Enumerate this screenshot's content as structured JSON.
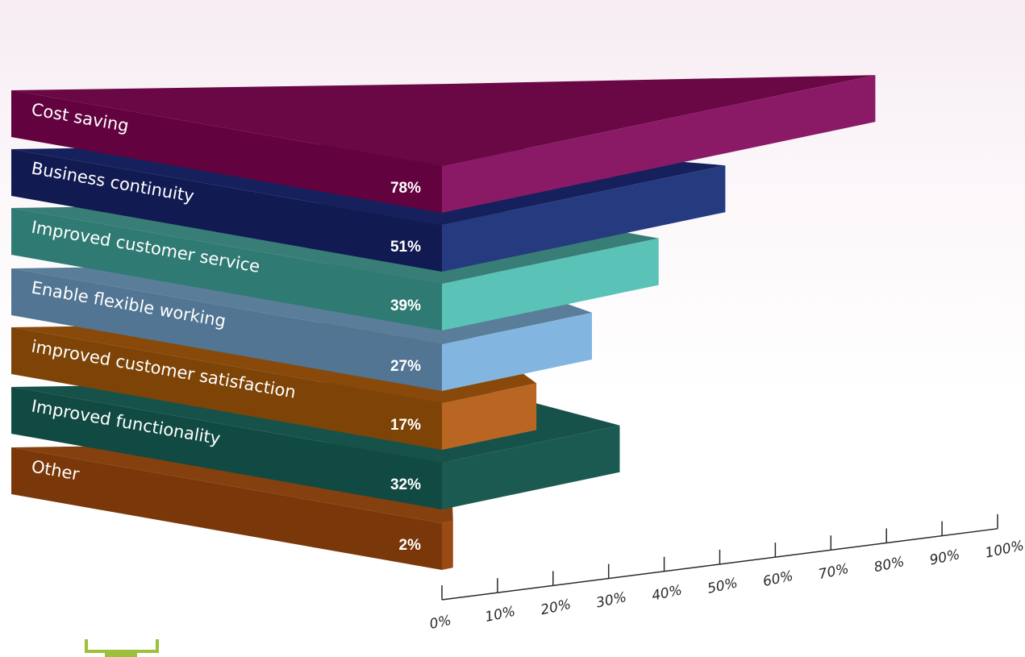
{
  "chart_data": {
    "type": "bar",
    "orientation": "horizontal",
    "categories": [
      "Cost saving",
      "Business continuity",
      "Improved customer service",
      "Enable flexible working",
      "improved customer satisfaction",
      "Improved functionality",
      "Other"
    ],
    "values": [
      78,
      51,
      39,
      27,
      17,
      32,
      2
    ],
    "value_labels": [
      "78%",
      "51%",
      "39%",
      "27%",
      "17%",
      "32%",
      "2%"
    ],
    "xlim": [
      0,
      100
    ],
    "x_ticks": [
      "0%",
      "10%",
      "20%",
      "30%",
      "40%",
      "50%",
      "60%",
      "70%",
      "80%",
      "90%",
      "100%"
    ],
    "grid": false,
    "legend": "none",
    "bar_colors": [
      {
        "front": "#62023f",
        "side": "#8a1a66",
        "top": "#6a0745"
      },
      {
        "front": "#121a52",
        "side": "#263a80",
        "top": "#16205c"
      },
      {
        "front": "#2f7a72",
        "side": "#5ac2b6",
        "top": "#387e76"
      },
      {
        "front": "#517592",
        "side": "#82b6e0",
        "top": "#5a7e9a"
      },
      {
        "front": "#7e4407",
        "side": "#ba6623",
        "top": "#88490a"
      },
      {
        "front": "#114a43",
        "side": "#1a5a51",
        "top": "#16524a"
      },
      {
        "front": "#7a380a",
        "side": "#9a4a14",
        "top": "#84400e"
      }
    ],
    "accent_color": "#9dc03b"
  }
}
